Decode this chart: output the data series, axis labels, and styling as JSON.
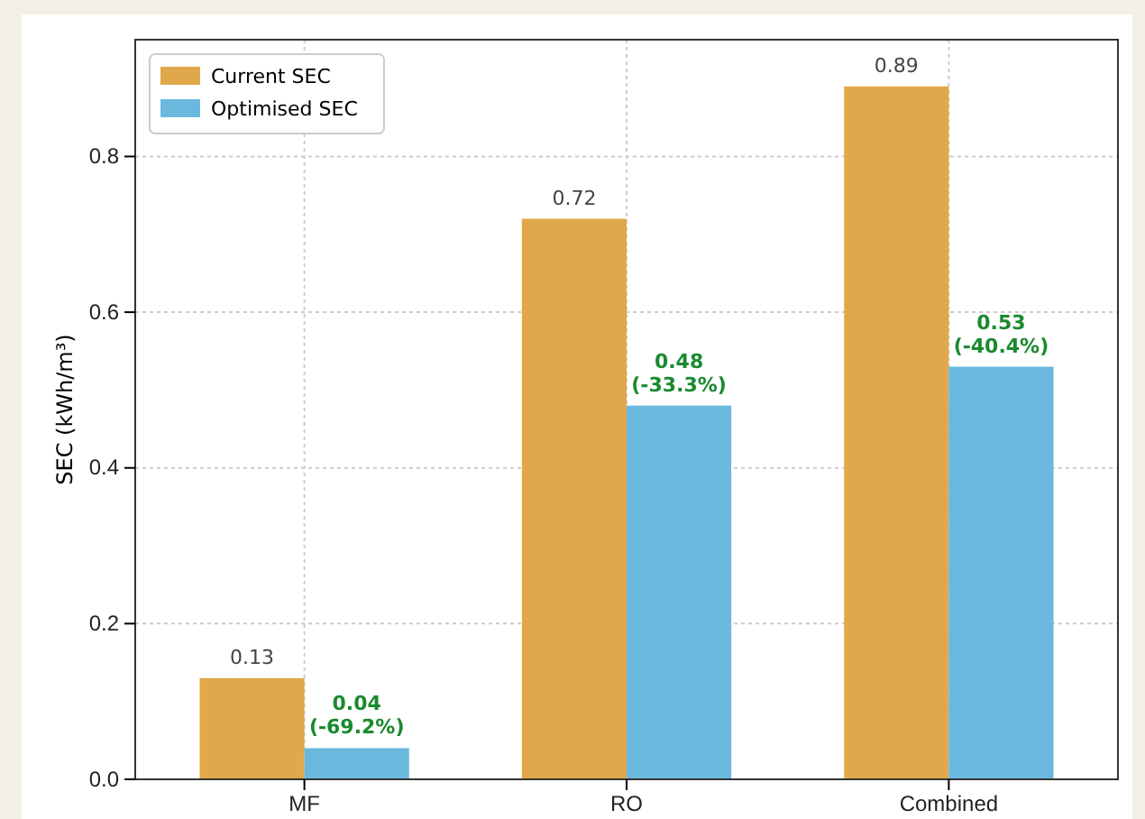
{
  "chart_data": {
    "type": "bar",
    "ylabel": "SEC (kWh/m³)",
    "categories": [
      "MF",
      "RO",
      "Combined"
    ],
    "series": [
      {
        "name": "Current SEC",
        "color": "#e0a84a",
        "values": [
          0.13,
          0.72,
          0.89
        ],
        "value_labels": [
          "0.13",
          "0.72",
          "0.89"
        ]
      },
      {
        "name": "Optimised SEC",
        "color": "#6bb8de",
        "values": [
          0.04,
          0.48,
          0.53
        ],
        "value_labels": [
          "0.04\n(-69.2%)",
          "0.48\n(-33.3%)",
          "0.53\n(-40.4%)"
        ]
      }
    ],
    "ylim": [
      0,
      0.95
    ],
    "yticks": [
      {
        "value": 0,
        "label": "0.0"
      },
      {
        "value": 0.2,
        "label": "0.2"
      },
      {
        "value": 0.4,
        "label": "0.4"
      },
      {
        "value": 0.6,
        "label": "0.6"
      },
      {
        "value": 0.8,
        "label": "0.8"
      }
    ],
    "grid": true,
    "legend": "top left"
  }
}
